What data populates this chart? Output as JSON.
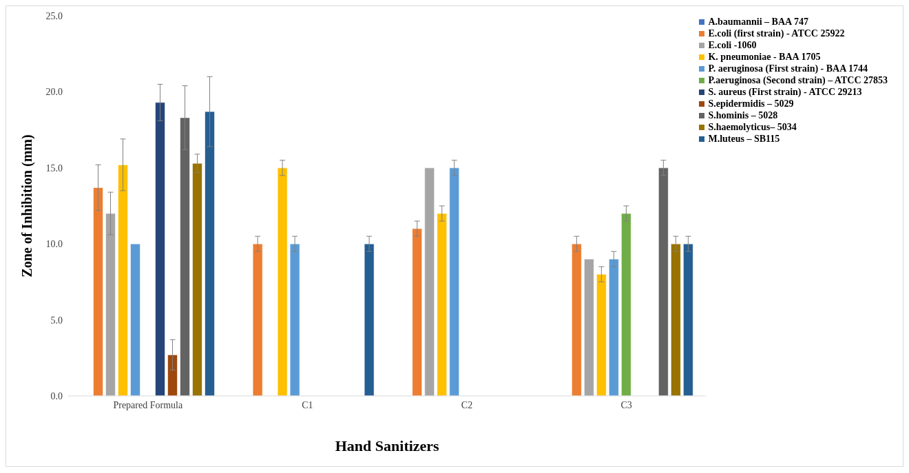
{
  "chart_data": {
    "type": "bar",
    "xlabel": "Hand Sanitizers",
    "ylabel": "Zone of Inhibition  (mm)",
    "categories": [
      "Prepared Formula",
      "C1",
      "C2",
      "C3"
    ],
    "ylim": [
      0,
      25
    ],
    "yticks": [
      {
        "value": 0,
        "label": "0.0"
      },
      {
        "value": 5,
        "label": "5.0"
      },
      {
        "value": 10,
        "label": "10.0"
      },
      {
        "value": 15,
        "label": "15.0"
      },
      {
        "value": 20,
        "label": "20.0"
      },
      {
        "value": 25,
        "label": "25.0"
      }
    ],
    "legend": "top right",
    "series": [
      {
        "name": "A.baumannii – BAA 747",
        "color": "#4472c4",
        "values": [
          null,
          null,
          null,
          null
        ],
        "errors": [
          null,
          null,
          null,
          null
        ]
      },
      {
        "name": "E.coli (first strain) - ATCC 25922",
        "color": "#ed7d31",
        "values": [
          13.7,
          10,
          11,
          10
        ],
        "errors": [
          1.5,
          0.5,
          0.5,
          0.5
        ]
      },
      {
        "name": "E.coli -1060",
        "color": "#a5a5a5",
        "values": [
          12.0,
          null,
          15,
          9
        ],
        "errors": [
          1.4,
          null,
          0,
          0
        ]
      },
      {
        "name": "K. pneumoniae - BAA 1705",
        "color": "#ffc000",
        "values": [
          15.2,
          15,
          12,
          8
        ],
        "errors": [
          1.7,
          0.5,
          0.5,
          0.5
        ]
      },
      {
        "name": "P. aeruginosa (First strain) - BAA 1744",
        "color": "#5b9bd5",
        "values": [
          10,
          10,
          15,
          9
        ],
        "errors": [
          0,
          0.5,
          0.5,
          0.5
        ]
      },
      {
        "name": "P.aeruginosa (Second strain) – ATCC 27853",
        "color": "#70ad47",
        "values": [
          null,
          null,
          null,
          12
        ],
        "errors": [
          null,
          null,
          null,
          0.5
        ]
      },
      {
        "name": "S. aureus (First strain) - ATCC 29213",
        "color": "#264478",
        "values": [
          19.3,
          null,
          null,
          null
        ],
        "errors": [
          1.2,
          null,
          null,
          null
        ]
      },
      {
        "name": "S.epidermidis – 5029",
        "color": "#9e480e",
        "values": [
          2.7,
          null,
          null,
          null
        ],
        "errors": [
          1.0,
          null,
          null,
          null
        ]
      },
      {
        "name": "S.hominis – 5028",
        "color": "#636363",
        "values": [
          18.3,
          null,
          null,
          15
        ],
        "errors": [
          2.1,
          null,
          null,
          0.5
        ]
      },
      {
        "name": "S.haemolyticus– 5034",
        "color": "#997300",
        "values": [
          15.3,
          null,
          null,
          10
        ],
        "errors": [
          0.6,
          null,
          null,
          0.5
        ]
      },
      {
        "name": "M.luteus – SB115",
        "color": "#255e91",
        "values": [
          18.7,
          10,
          null,
          10
        ],
        "errors": [
          2.3,
          0.5,
          null,
          0.5
        ]
      }
    ]
  }
}
